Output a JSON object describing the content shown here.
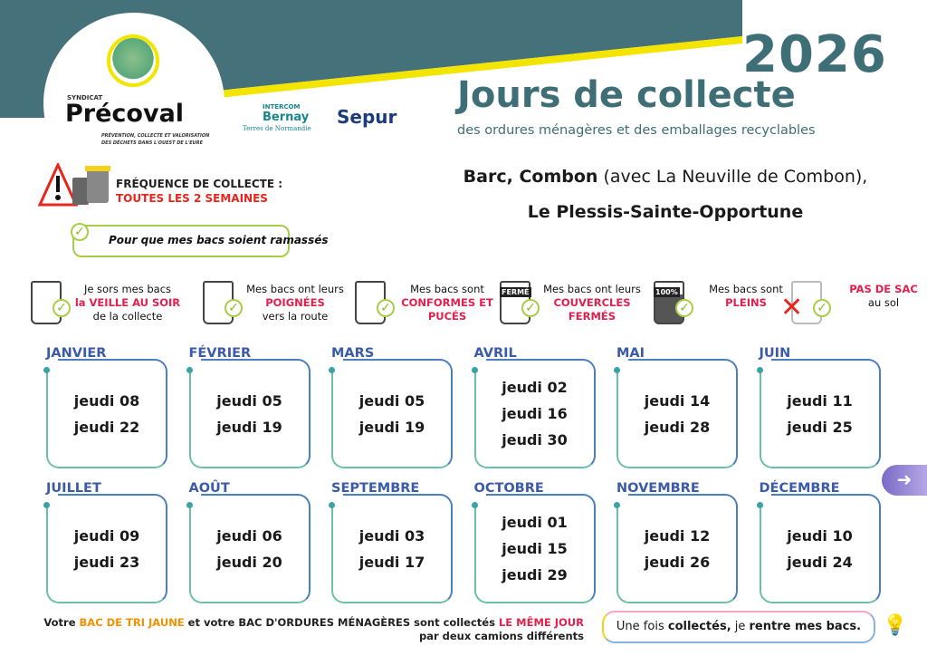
{
  "header": {
    "year": "2026",
    "title": "Jours de collecte",
    "subtitle": "des ordures ménagères et des emballages recyclables",
    "logos": {
      "precoval": {
        "prefix": "SYNDICAT",
        "name": "Précoval",
        "tagline": "PRÉVENTION, COLLECTE ET VALORISATION DES DÉCHETS DANS L'OUEST DE L'EURE"
      },
      "intercom": {
        "line1": "INTERCOM",
        "line2": "Bernay",
        "line3": "Terres de Normandie"
      },
      "sepur": "Sepur"
    },
    "colors": {
      "banner": "#45717b",
      "accent_yellow": "#f4e500",
      "title": "#3e6e76"
    }
  },
  "towns": {
    "line1_bold": "Barc, Combon",
    "line1_rest": " (avec La Neuville de Combon),",
    "line2": "Le Plessis-Sainte-Opportune"
  },
  "frequency": {
    "label": "FRÉQUENCE DE COLLECTE :",
    "value": "TOUTES LES 2 SEMAINES"
  },
  "rules_heading": "Pour que mes bacs soient ramassés",
  "rules": [
    {
      "icon": "bin-night-icon",
      "text": "Je sors mes bacs",
      "highlight": "la VEILLE AU SOIR",
      "after": "de la collecte"
    },
    {
      "icon": "bin-handle-icon",
      "text": "Mes bacs ont leurs",
      "highlight": "POIGNÉES",
      "after": "vers la route"
    },
    {
      "icon": "bin-barcode-icon",
      "text": "Mes bacs sont",
      "highlight": "CONFORMES ET PUCÉS",
      "after": ""
    },
    {
      "icon": "bin-closed-icon",
      "text": "Mes bacs ont leurs",
      "highlight": "COUVERCLES FERMÉS",
      "after": "",
      "badge": "FERMÉ"
    },
    {
      "icon": "bin-full-icon",
      "text": "Mes bacs sont",
      "highlight": "PLEINS",
      "after": "",
      "badge": "100%"
    },
    {
      "icon": "no-bag-icon",
      "text": "",
      "highlight": "PAS DE SAC",
      "after": "au sol"
    }
  ],
  "months": [
    {
      "name": "JANVIER",
      "dates": [
        "jeudi 08",
        "jeudi 22"
      ]
    },
    {
      "name": "FÉVRIER",
      "dates": [
        "jeudi 05",
        "jeudi 19"
      ]
    },
    {
      "name": "MARS",
      "dates": [
        "jeudi 05",
        "jeudi 19"
      ]
    },
    {
      "name": "AVRIL",
      "dates": [
        "jeudi 02",
        "jeudi 16",
        "jeudi 30"
      ]
    },
    {
      "name": "MAI",
      "dates": [
        "jeudi 14",
        "jeudi 28"
      ]
    },
    {
      "name": "JUIN",
      "dates": [
        "jeudi 11",
        "jeudi 25"
      ]
    },
    {
      "name": "JUILLET",
      "dates": [
        "jeudi 09",
        "jeudi 23"
      ]
    },
    {
      "name": "AOÛT",
      "dates": [
        "jeudi 06",
        "jeudi 20"
      ]
    },
    {
      "name": "SEPTEMBRE",
      "dates": [
        "jeudi 03",
        "jeudi 17"
      ]
    },
    {
      "name": "OCTOBRE",
      "dates": [
        "jeudi 01",
        "jeudi 15",
        "jeudi 29"
      ]
    },
    {
      "name": "NOVEMBRE",
      "dates": [
        "jeudi 12",
        "jeudi 26"
      ]
    },
    {
      "name": "DÉCEMBRE",
      "dates": [
        "jeudi 10",
        "jeudi 24"
      ]
    }
  ],
  "footer": {
    "p1": "Votre ",
    "p2": "BAC DE TRI JAUNE",
    "p3": " et votre BAC D'ORDURES MÉNAGÈRES sont collectés ",
    "p4": "LE MÊME JOUR",
    "line2": "par deux camions différents",
    "reminder": {
      "a": "Une fois ",
      "b": "collectés,",
      "c": " je ",
      "d": "rentre mes bacs."
    }
  },
  "next_icon": "arrow-right-icon"
}
